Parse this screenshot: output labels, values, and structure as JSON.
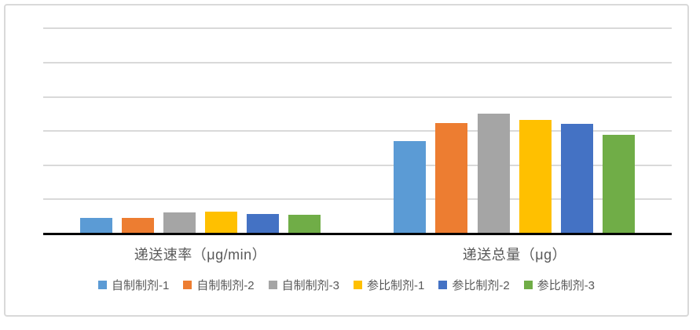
{
  "chart_data": {
    "type": "bar",
    "title": "",
    "xlabel": "",
    "ylabel": "",
    "categories": [
      "递送速率（μg/min）",
      "递送总量（μg）"
    ],
    "series": [
      {
        "name": "自制制剂-1",
        "color": "#5B9BD5",
        "values": [
          0.46,
          2.7
        ]
      },
      {
        "name": "自制制剂-2",
        "color": "#ED7D31",
        "values": [
          0.47,
          3.24
        ]
      },
      {
        "name": "自制制剂-3",
        "color": "#A5A5A5",
        "values": [
          0.62,
          3.52
        ]
      },
      {
        "name": "参比制剂-1",
        "color": "#FFC000",
        "values": [
          0.65,
          3.32
        ]
      },
      {
        "name": "参比制剂-2",
        "color": "#4472C4",
        "values": [
          0.58,
          3.22
        ]
      },
      {
        "name": "参比制剂-3",
        "color": "#70AD47",
        "values": [
          0.56,
          2.89
        ]
      }
    ],
    "value_scale_note": "y-axis has no tick labels; values are in gridline intervals (1 unit = 1 gridline spacing)",
    "ylim": [
      0,
      6.4
    ],
    "gridlines": {
      "show": true,
      "count": 6,
      "color": "#D9D9D9"
    },
    "axis_line_color": "#000000",
    "text_color": "#595959",
    "legend_position": "bottom"
  },
  "frame": {
    "border_color": "#D9D9D9",
    "background": "#FFFFFF"
  }
}
